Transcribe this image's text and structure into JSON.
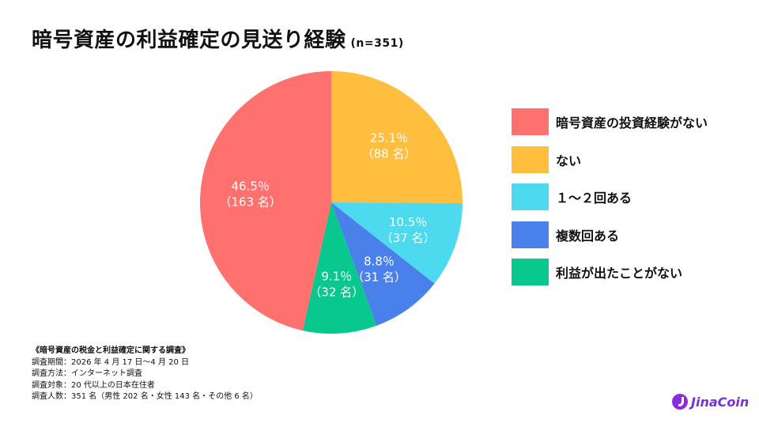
{
  "title": "暗号資産の利益確定の見送り経験",
  "sample": "(n=351)",
  "chart_data": {
    "type": "pie",
    "title": "暗号資産の利益確定の見送り経験",
    "subtitle": "(n=351)",
    "start": "top",
    "direction": "clockwise",
    "slices": [
      {
        "name": "ない",
        "percent": 25.1,
        "count": 88,
        "pct_label": "25.1％",
        "count_label": "（88 名）",
        "color": "#FFBE3D"
      },
      {
        "name": "１～２回ある",
        "percent": 10.5,
        "count": 37,
        "pct_label": "10.5％",
        "count_label": "（37 名）",
        "color": "#4DD9EE"
      },
      {
        "name": "複数回ある",
        "percent": 8.8,
        "count": 31,
        "pct_label": "8.8％",
        "count_label": "（31 名）",
        "color": "#4A80EA"
      },
      {
        "name": "利益が出たことがない",
        "percent": 9.1,
        "count": 32,
        "pct_label": "9.1％",
        "count_label": "（32 名）",
        "color": "#08C88E"
      },
      {
        "name": "暗号資産の投資経験がない",
        "percent": 46.5,
        "count": 163,
        "pct_label": "46.5％",
        "count_label": "（163 名）",
        "color": "#FF716F"
      }
    ],
    "legend_position": "right",
    "legend": [
      {
        "label": "暗号資産の投資経験がない",
        "color": "#FF716F"
      },
      {
        "label": "ない",
        "color": "#FFBE3D"
      },
      {
        "label": "１～２回ある",
        "color": "#4DD9EE"
      },
      {
        "label": "複数回ある",
        "color": "#4A80EA"
      },
      {
        "label": "利益が出たことがない",
        "color": "#08C88E"
      }
    ]
  },
  "notes": {
    "heading": "《暗号資産の税金と利益確定に関する調査》",
    "period": "調査期間：2026 年 4 月 17 日～4 月 20 日",
    "method": "調査方法：インターネット調査",
    "target": "調査対象：20 代以上の日本在住者",
    "respondents": "調査人数：351 名（男性 202 名・女性 143 名・その他 6 名）"
  },
  "logo": {
    "text": "JinaCoin",
    "icon": "jinacoin-logo-icon",
    "color": "#7B2FD6"
  }
}
